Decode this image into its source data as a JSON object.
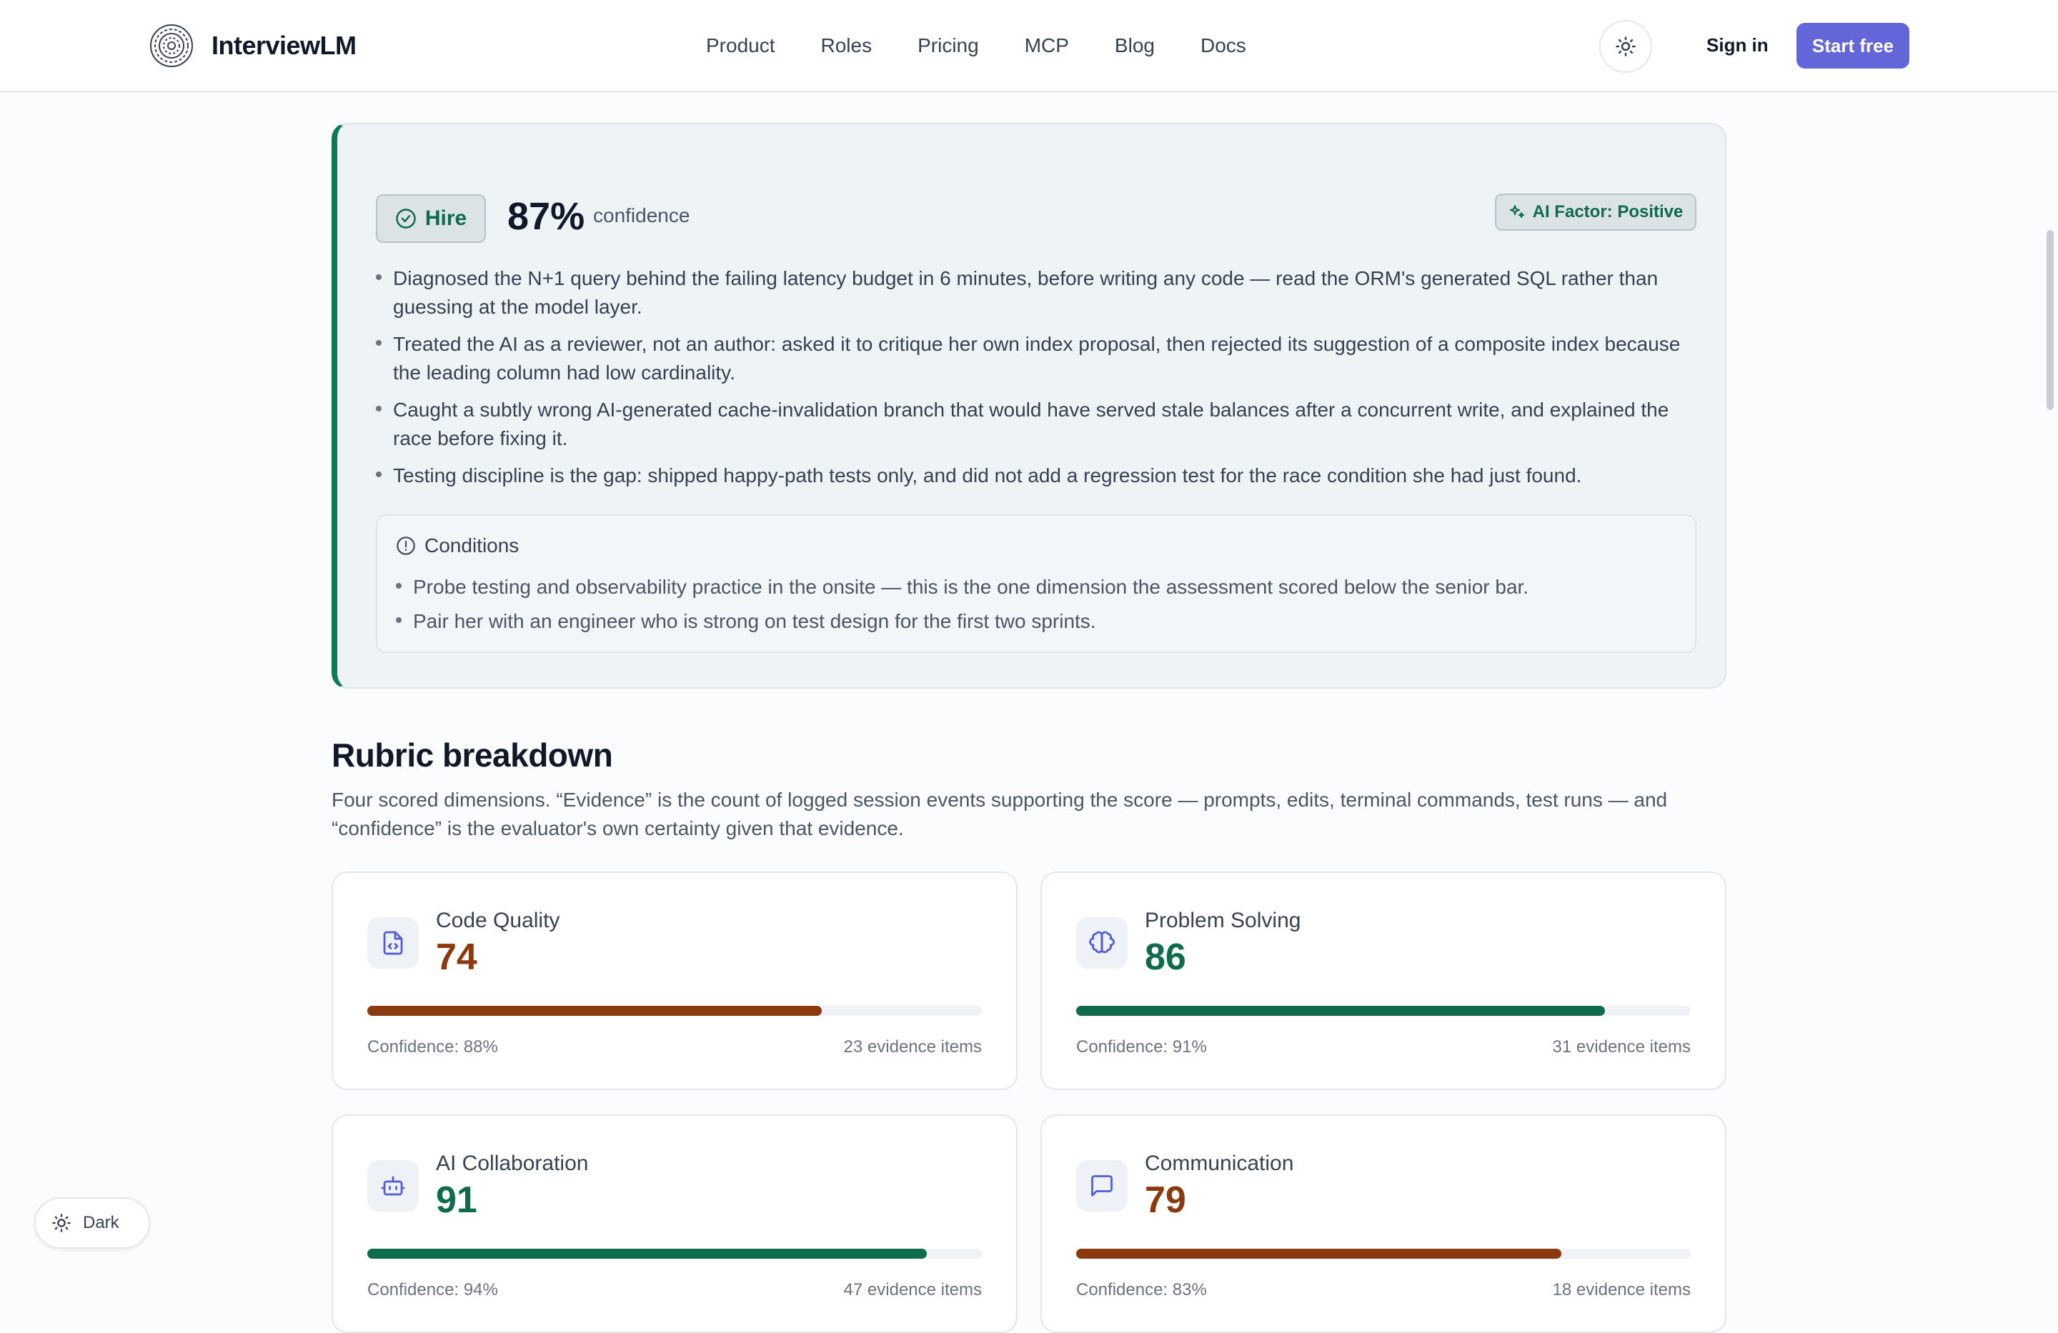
{
  "nav": {
    "brand": "InterviewLM",
    "links": [
      "Product",
      "Roles",
      "Pricing",
      "MCP",
      "Blog",
      "Docs"
    ],
    "sign_in": "Sign in",
    "start_free": "Start free"
  },
  "verdict": {
    "decision": "Hire",
    "confidence_value": "87%",
    "confidence_label": "confidence",
    "ai_factor": "AI Factor: Positive",
    "bullets": [
      "Diagnosed the N+1 query behind the failing latency budget in 6 minutes, before writing any code — read the ORM's generated SQL rather than guessing at the model layer.",
      "Treated the AI as a reviewer, not an author: asked it to critique her own index proposal, then rejected its suggestion of a composite index because the leading column had low cardinality.",
      "Caught a subtly wrong AI-generated cache-invalidation branch that would have served stale balances after a concurrent write, and explained the race before fixing it.",
      "Testing discipline is the gap: shipped happy-path tests only, and did not add a regression test for the race condition she had just found."
    ],
    "conditions_title": "Conditions",
    "conditions": [
      "Probe testing and observability practice in the onsite — this is the one dimension the assessment scored below the senior bar.",
      "Pair her with an engineer who is strong on test design for the first two sprints."
    ]
  },
  "rubric": {
    "title": "Rubric breakdown",
    "description": "Four scored dimensions. “Evidence” is the count of logged session events supporting the score — prompts, edits, terminal commands, test runs — and “confidence” is the evaluator's own certainty given that evidence.",
    "cards": [
      {
        "name": "Code Quality",
        "score": "74",
        "progress": 0.74,
        "color": "#8b3a0f",
        "confidence": "Confidence: 88%",
        "evidence": "23 evidence items",
        "icon": "code-file-icon"
      },
      {
        "name": "Problem Solving",
        "score": "86",
        "progress": 0.86,
        "color": "#0e6b4b",
        "confidence": "Confidence: 91%",
        "evidence": "31 evidence items",
        "icon": "brain-icon"
      },
      {
        "name": "AI Collaboration",
        "score": "91",
        "progress": 0.91,
        "color": "#0e6b4b",
        "confidence": "Confidence: 94%",
        "evidence": "47 evidence items",
        "icon": "robot-icon"
      },
      {
        "name": "Communication",
        "score": "79",
        "progress": 0.79,
        "color": "#8b3a0f",
        "confidence": "Confidence: 83%",
        "evidence": "18 evidence items",
        "icon": "chat-bubble-icon"
      }
    ]
  },
  "theme_toggle": {
    "label": "Dark"
  }
}
